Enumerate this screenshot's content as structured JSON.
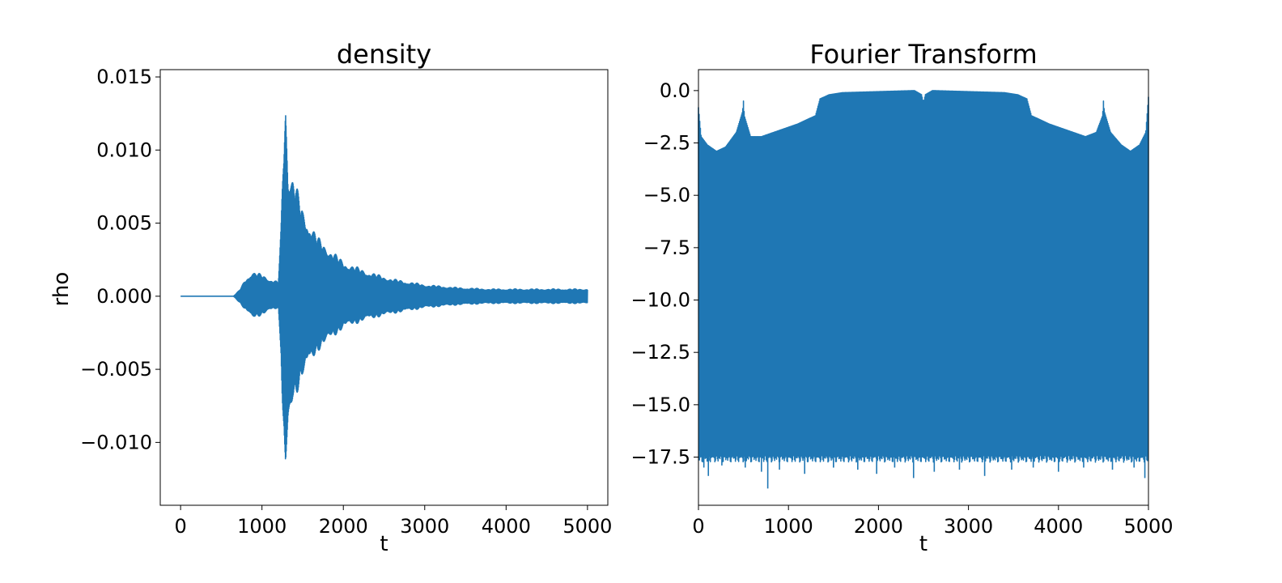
{
  "chart_data": [
    {
      "type": "line",
      "title": "density",
      "xlabel": "t",
      "ylabel": "rho",
      "xlim": [
        -250,
        5250
      ],
      "ylim": [
        -0.0143,
        0.0155
      ],
      "xticks": [
        0,
        1000,
        2000,
        3000,
        4000,
        5000
      ],
      "xtick_labels": [
        "0",
        "1000",
        "2000",
        "3000",
        "4000",
        "5000"
      ],
      "yticks": [
        -0.01,
        -0.005,
        0.0,
        0.005,
        0.01,
        0.015
      ],
      "ytick_labels": [
        "−0.010",
        "−0.005",
        "0.000",
        "0.005",
        "0.010",
        "0.015"
      ],
      "color": "#1f77b4",
      "series": [
        {
          "t_range": [
            0,
            5000
          ],
          "envelope": {
            "t": [
              0,
              650,
              720,
              800,
              880,
              1000,
              1100,
              1200,
              1235,
              1250,
              1270,
              1290,
              1320,
              1380,
              1500,
              1700,
              2000,
              2300,
              2600,
              3000,
              3400,
              3800,
              4200,
              4600,
              5000
            ],
            "upper": [
              0,
              0,
              0.0004,
              0.0012,
              0.0017,
              0.0015,
              0.0012,
              0.001,
              0.0048,
              0.0078,
              0.0115,
              0.0142,
              0.009,
              0.0085,
              0.006,
              0.004,
              0.0024,
              0.0017,
              0.0012,
              0.0008,
              0.0006,
              0.0005,
              0.0005,
              0.0005,
              0.0005
            ],
            "lower": [
              0,
              0,
              -0.0004,
              -0.001,
              -0.0015,
              -0.0013,
              -0.001,
              -0.0008,
              -0.004,
              -0.0075,
              -0.011,
              -0.0128,
              -0.01,
              -0.0075,
              -0.0055,
              -0.0037,
              -0.0022,
              -0.0016,
              -0.0012,
              -0.0008,
              -0.0006,
              -0.0005,
              -0.0005,
              -0.0005,
              -0.0005
            ]
          }
        }
      ]
    },
    {
      "type": "line",
      "title": "Fourier Transform",
      "xlabel": "t",
      "ylabel": "",
      "xlim": [
        0,
        5000
      ],
      "ylim": [
        -19.8,
        1.0
      ],
      "xticks": [
        0,
        1000,
        2000,
        3000,
        4000,
        5000
      ],
      "xtick_labels": [
        "0",
        "1000",
        "2000",
        "3000",
        "4000",
        "5000"
      ],
      "yticks": [
        0.0,
        -2.5,
        -5.0,
        -7.5,
        -10.0,
        -12.5,
        -15.0,
        -17.5
      ],
      "ytick_labels": [
        "0.0",
        "−2.5",
        "−5.0",
        "−7.5",
        "−10.0",
        "−12.5",
        "−15.0",
        "−17.5"
      ],
      "color": "#1f77b4",
      "series": [
        {
          "t_range": [
            0,
            5000
          ],
          "upper_envelope": {
            "t": [
              0,
              30,
              100,
              200,
              300,
              420,
              490,
              500,
              510,
              580,
              700,
              900,
              1100,
              1300,
              1350,
              1450,
              1600,
              2000,
              2400,
              2480,
              2500,
              2520,
              2600,
              3000,
              3400,
              3550,
              3650,
              3700,
              3900,
              4100,
              4300,
              4420,
              4490,
              4500,
              4510,
              4580,
              4700,
              4800,
              4900,
              4970,
              5000
            ],
            "y": [
              -0.8,
              -2.2,
              -2.6,
              -2.9,
              -2.7,
              -2.0,
              -1.0,
              -0.5,
              -1.2,
              -2.2,
              -2.2,
              -1.9,
              -1.6,
              -1.2,
              -0.4,
              -0.2,
              -0.1,
              -0.05,
              0.0,
              -0.2,
              -0.6,
              -0.2,
              0.0,
              -0.05,
              -0.1,
              -0.2,
              -0.4,
              -1.2,
              -1.6,
              -1.9,
              -2.2,
              -2.0,
              -1.2,
              -0.5,
              -1.0,
              -2.0,
              -2.6,
              -2.9,
              -2.6,
              -2.0,
              -0.3
            ]
          },
          "lower_floor": -17.4,
          "lower_spikes": [
            {
              "t": 60,
              "y": -18.0
            },
            {
              "t": 110,
              "y": -18.4
            },
            {
              "t": 260,
              "y": -17.9
            },
            {
              "t": 520,
              "y": -18.0
            },
            {
              "t": 700,
              "y": -18.2
            },
            {
              "t": 770,
              "y": -19.0
            },
            {
              "t": 900,
              "y": -18.1
            },
            {
              "t": 1180,
              "y": -18.3
            },
            {
              "t": 1500,
              "y": -18.0
            },
            {
              "t": 1500,
              "y": -18.0
            },
            {
              "t": 1770,
              "y": -18.1
            },
            {
              "t": 1980,
              "y": -18.3
            },
            {
              "t": 2180,
              "y": -18.0
            },
            {
              "t": 2390,
              "y": -18.5
            },
            {
              "t": 2620,
              "y": -18.2
            },
            {
              "t": 2900,
              "y": -18.1
            },
            {
              "t": 3180,
              "y": -18.4
            },
            {
              "t": 3480,
              "y": -18.1
            },
            {
              "t": 3720,
              "y": -18.0
            },
            {
              "t": 4000,
              "y": -18.2
            },
            {
              "t": 4280,
              "y": -18.0
            },
            {
              "t": 4600,
              "y": -18.1
            },
            {
              "t": 4840,
              "y": -18.0
            },
            {
              "t": 4960,
              "y": -18.5
            }
          ]
        }
      ]
    }
  ]
}
